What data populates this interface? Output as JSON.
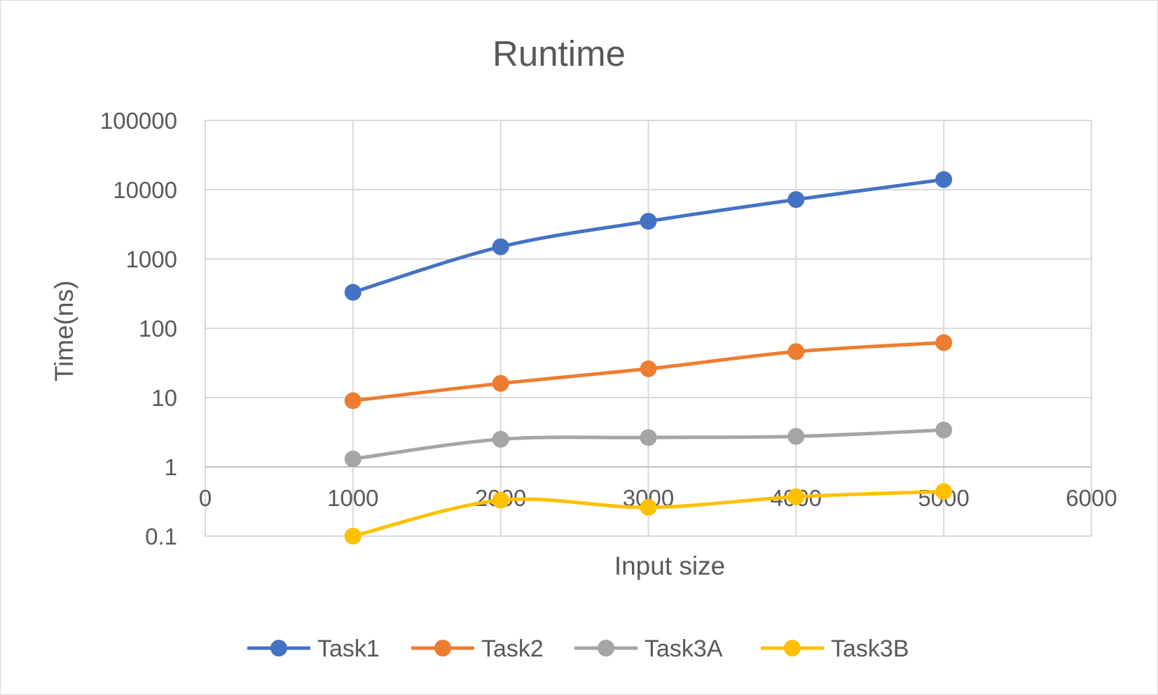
{
  "chart_data": {
    "type": "line",
    "title": "Runtime",
    "xlabel": "Input size",
    "ylabel": "Time(ns)",
    "xlim": [
      0,
      6000
    ],
    "xticks": [
      "0",
      "1000",
      "2000",
      "3000",
      "4000",
      "5000",
      "6000"
    ],
    "ylim": [
      0.1,
      100000
    ],
    "yscale": "log",
    "yticks": [
      "0.1",
      "1",
      "10",
      "100",
      "1000",
      "10000",
      "100000"
    ],
    "x_axis_crosses_at": 1,
    "grid": true,
    "legend": "bottom",
    "smooth": true,
    "x": [
      1000,
      2000,
      3000,
      4000,
      5000
    ],
    "series": [
      {
        "name": "Task1",
        "color": "#4472c4",
        "values": [
          330,
          1500,
          3500,
          7200,
          14000
        ]
      },
      {
        "name": "Task2",
        "color": "#ed7d31",
        "values": [
          9,
          16,
          26,
          46,
          62
        ]
      },
      {
        "name": "Task3A",
        "color": "#a5a5a5",
        "values": [
          1.3,
          2.5,
          2.65,
          2.75,
          3.4
        ]
      },
      {
        "name": "Task3B",
        "color": "#ffc000",
        "values": [
          0.1,
          0.33,
          0.26,
          0.37,
          0.44
        ]
      }
    ]
  }
}
